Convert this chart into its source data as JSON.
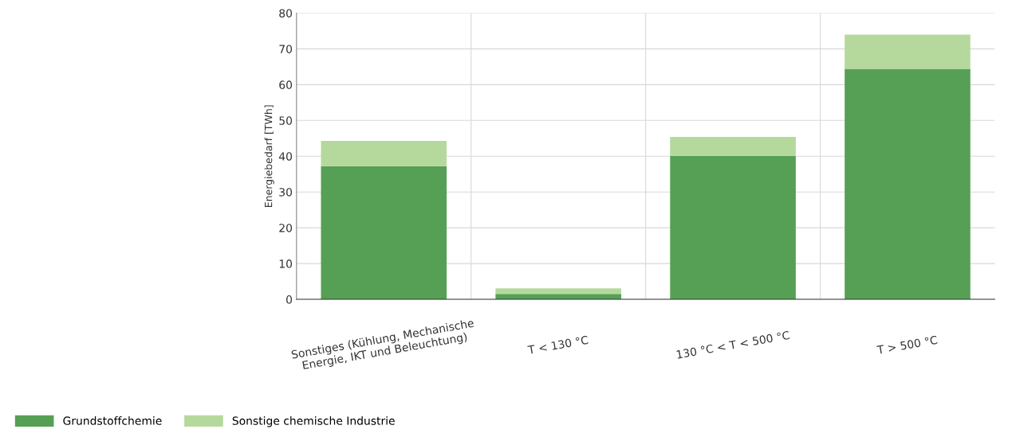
{
  "chart_data": {
    "type": "bar",
    "stacked": true,
    "ylabel": "Energiebedarf [TWh]",
    "categories": [
      "Sonstiges (Kühlung, Mechanische Energie, IKT und Beleuchtung)",
      "T < 130 °C",
      "130 °C < T < 500 °C",
      "T > 500 °C"
    ],
    "series": [
      {
        "name": "Grundstoffchemie",
        "color": "#55a055",
        "values": [
          37.2,
          1.5,
          40.1,
          64.4
        ]
      },
      {
        "name": "Sonstige chemische Industrie",
        "color": "#b5d99c",
        "values": [
          7.1,
          1.6,
          5.3,
          9.6
        ]
      }
    ],
    "ylim": [
      0,
      80
    ],
    "yticks": [
      0,
      10,
      20,
      30,
      40,
      50,
      60,
      70,
      80
    ],
    "grid": true,
    "legend": "bottom left"
  }
}
